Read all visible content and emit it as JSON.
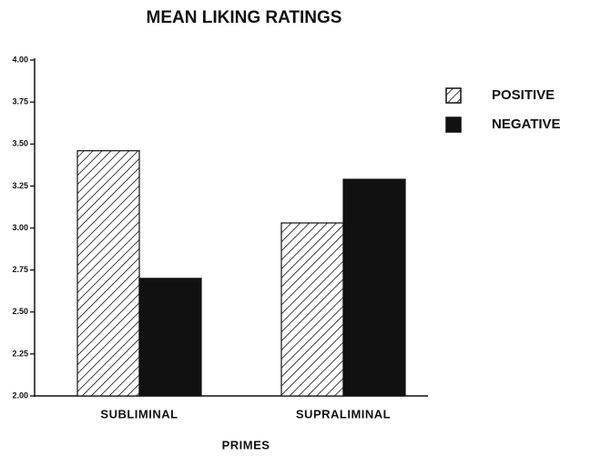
{
  "chart_data": {
    "type": "bar",
    "title": "MEAN LIKING RATINGS",
    "x_label": "PRIMES",
    "categories": [
      "SUBLIMINAL",
      "SUPRALIMINAL"
    ],
    "series": [
      {
        "name": "POSITIVE",
        "color": "#111111",
        "hatch": true,
        "values": [
          3.46,
          3.03
        ]
      },
      {
        "name": "NEGATIVE",
        "color": "#111111",
        "hatch": false,
        "values": [
          2.7,
          3.29
        ]
      }
    ],
    "ylim": [
      2.0,
      4.0
    ],
    "yticks": [
      {
        "value": 2.0,
        "label": "2.00"
      },
      {
        "value": 2.25,
        "label": "2.25"
      },
      {
        "value": 2.5,
        "label": "2.50"
      },
      {
        "value": 2.75,
        "label": "2.75"
      },
      {
        "value": 3.0,
        "label": "3.00"
      },
      {
        "value": 3.25,
        "label": "3.25"
      },
      {
        "value": 3.5,
        "label": "3.50"
      },
      {
        "value": 3.75,
        "label": "3.75"
      },
      {
        "value": 4.0,
        "label": "4.00"
      }
    ],
    "legend": "right"
  }
}
